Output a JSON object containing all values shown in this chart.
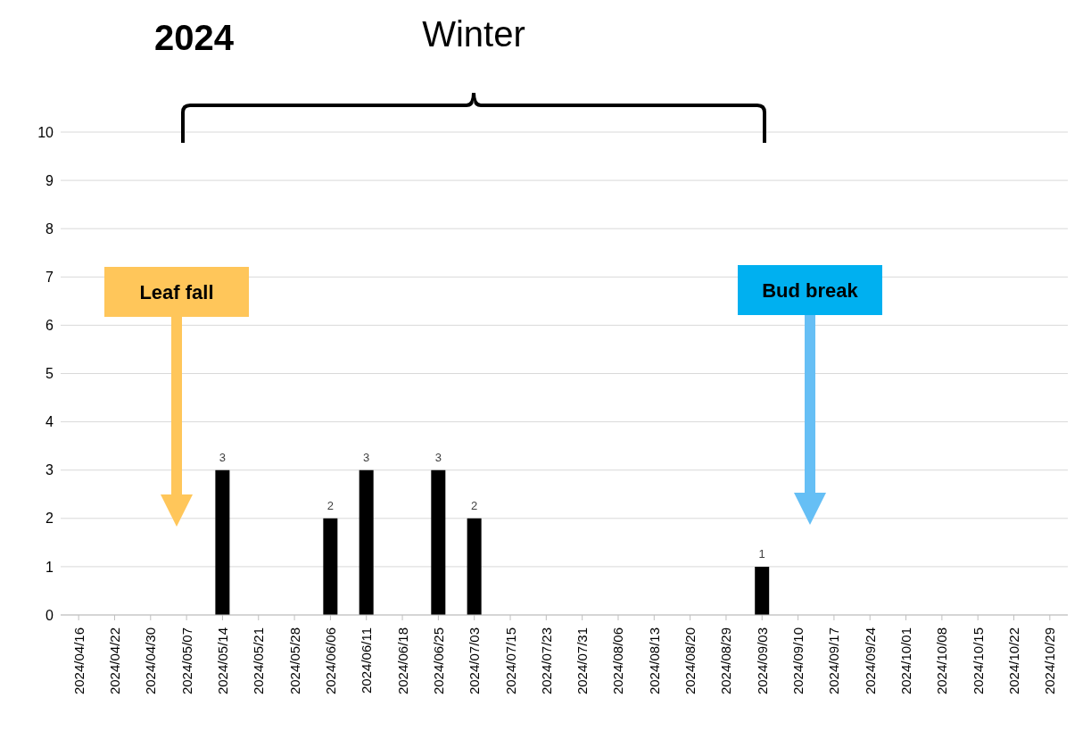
{
  "chart_data": {
    "type": "bar",
    "title": "2024",
    "categories": [
      "2024/04/16",
      "2024/04/22",
      "2024/04/30",
      "2024/05/07",
      "2024/05/14",
      "2024/05/21",
      "2024/05/28",
      "2024/06/06",
      "2024/06/11",
      "2024/06/18",
      "2024/06/25",
      "2024/07/03",
      "2024/07/15",
      "2024/07/23",
      "2024/07/31",
      "2024/08/06",
      "2024/08/13",
      "2024/08/20",
      "2024/08/29",
      "2024/09/03",
      "2024/09/10",
      "2024/09/17",
      "2024/09/24",
      "2024/10/01",
      "2024/10/08",
      "2024/10/15",
      "2024/10/22",
      "2024/10/29"
    ],
    "values": [
      0,
      0,
      0,
      0,
      3,
      0,
      0,
      2,
      3,
      0,
      3,
      2,
      0,
      0,
      0,
      0,
      0,
      0,
      0,
      1,
      0,
      0,
      0,
      0,
      0,
      0,
      0,
      0
    ],
    "value_labels": [
      null,
      null,
      null,
      null,
      "3",
      null,
      null,
      "2",
      "3",
      null,
      "3",
      "2",
      null,
      null,
      null,
      null,
      null,
      null,
      null,
      "1",
      null,
      null,
      null,
      null,
      null,
      null,
      null,
      null
    ],
    "color": "#000000",
    "ylim": [
      0,
      10
    ],
    "yticks": [
      0,
      1,
      2,
      3,
      4,
      5,
      6,
      7,
      8,
      9,
      10
    ],
    "grid": "y",
    "annotations": [
      "Winter",
      "Leaf fall",
      "Bud break"
    ]
  }
}
